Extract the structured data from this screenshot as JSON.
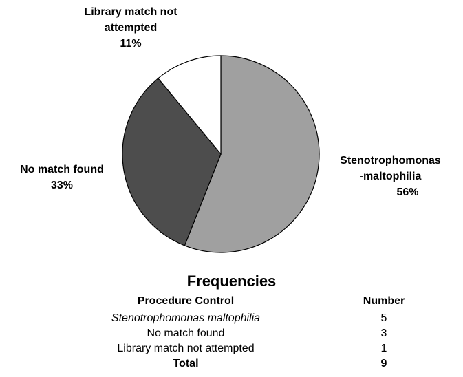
{
  "chart_data": {
    "type": "pie",
    "categories": [
      "Stenotrophomonas-maltophilia",
      "No match found",
      "Library match not attempted"
    ],
    "values": [
      56,
      33,
      11
    ],
    "value_labels": [
      "56%",
      "33%",
      "11%"
    ],
    "colors": [
      "#a0a0a0",
      "#4d4d4d",
      "#ffffff"
    ]
  },
  "table": {
    "title": "Frequencies",
    "columns": [
      "Procedure Control",
      "Number"
    ],
    "rows": [
      [
        "Stenotrophomonas maltophilia",
        "5"
      ],
      [
        "No match found",
        "3"
      ],
      [
        "Library match not attempted",
        "1"
      ],
      [
        "Total",
        "9"
      ]
    ]
  }
}
